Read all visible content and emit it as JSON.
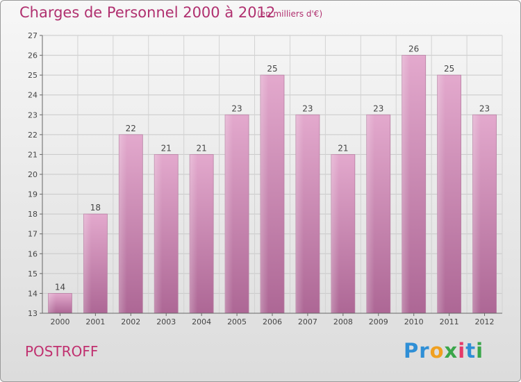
{
  "chart_data": {
    "type": "bar",
    "title": "Charges de Personnel 2000 à 2012",
    "subtitle": "(en milliers d'€)",
    "categories": [
      "2000",
      "2001",
      "2002",
      "2003",
      "2004",
      "2005",
      "2006",
      "2007",
      "2008",
      "2009",
      "2010",
      "2011",
      "2012"
    ],
    "values": [
      14,
      18,
      22,
      21,
      21,
      23,
      25,
      23,
      21,
      23,
      26,
      25,
      23
    ],
    "ylim": [
      13,
      27
    ],
    "yticks": [
      13,
      14,
      15,
      16,
      17,
      18,
      19,
      20,
      21,
      22,
      23,
      24,
      25,
      26,
      27
    ],
    "grid": true,
    "bar_color": "#c87aa8"
  },
  "place_name": "POSTROFF",
  "logo": {
    "letters": [
      {
        "ch": "P",
        "color": "#2f8fd6"
      },
      {
        "ch": "r",
        "color": "#2f8fd6"
      },
      {
        "ch": "o",
        "color": "#f0a020"
      },
      {
        "ch": "x",
        "color": "#3aa64a"
      },
      {
        "ch": "i",
        "color": "#e53a6a"
      },
      {
        "ch": "t",
        "color": "#2f8fd6"
      },
      {
        "ch": "i",
        "color": "#3aa64a"
      }
    ]
  }
}
